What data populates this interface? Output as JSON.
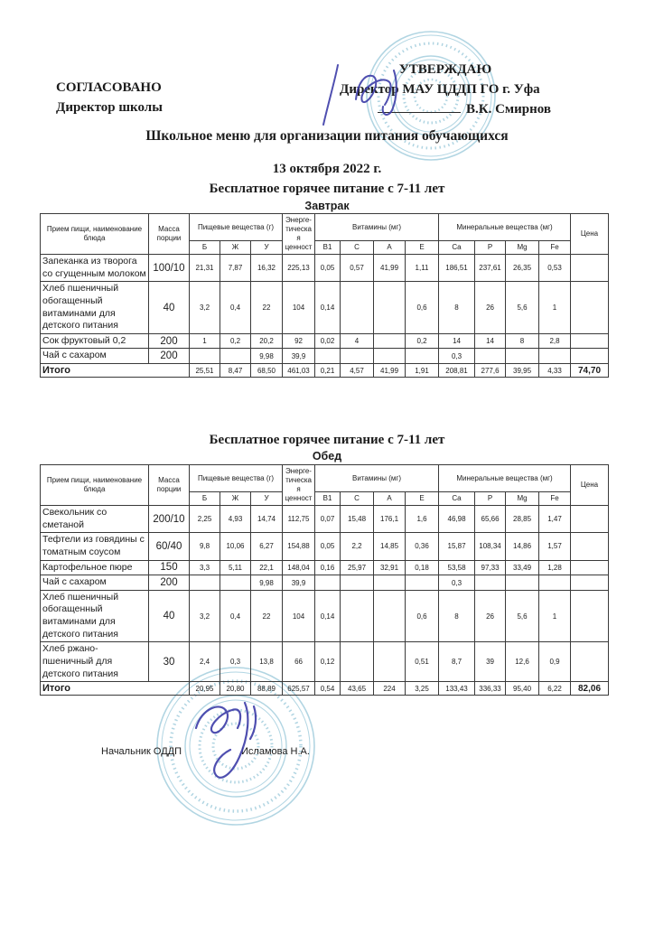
{
  "approval": {
    "left": [
      "СОГЛАСОВАНО",
      "Директор школы"
    ],
    "right": [
      "УТВЕРЖДАЮ",
      "Директор МАУ ЦДДП ГО г. Уфа",
      "В.К. Смирнов"
    ]
  },
  "title": "Школьное меню для организации питания обучающихся",
  "date": "13 октября 2022 г.",
  "table_headers": {
    "dish": "Прием пищи, наименование блюда",
    "mass": "Масса порции",
    "nutrients_group": "Пищевые вещества (г)",
    "nutrients": [
      "Б",
      "Ж",
      "У"
    ],
    "energy": "Энерге-\nтическа\nя\nценност",
    "vitamins_group": "Витамины (мг)",
    "vitamins": [
      "B1",
      "C",
      "A",
      "E"
    ],
    "minerals_group": "Минеральные вещества (мг)",
    "minerals": [
      "Ca",
      "P",
      "Mg",
      "Fe"
    ],
    "price": "Цена"
  },
  "tables": [
    {
      "section_title": "Бесплатное горячее питание с 7-11 лет",
      "meal": "Завтрак",
      "rows": [
        [
          "Запеканка из творога со сгущенным молоком",
          "100/10",
          "21,31",
          "7,87",
          "16,32",
          "225,13",
          "0,05",
          "0,57",
          "41,99",
          "1,11",
          "186,51",
          "237,61",
          "26,35",
          "0,53",
          ""
        ],
        [
          "Хлеб пшеничный обогащенный витаминами для детского питания",
          "40",
          "3,2",
          "0,4",
          "22",
          "104",
          "0,14",
          "",
          "",
          "0,6",
          "8",
          "26",
          "5,6",
          "1",
          ""
        ],
        [
          "Сок фруктовый 0,2",
          "200",
          "1",
          "0,2",
          "20,2",
          "92",
          "0,02",
          "4",
          "",
          "0,2",
          "14",
          "14",
          "8",
          "2,8",
          ""
        ],
        [
          "Чай с сахаром",
          "200",
          "",
          "",
          "9,98",
          "39,9",
          "",
          "",
          "",
          "",
          "0,3",
          "",
          "",
          "",
          ""
        ]
      ],
      "total": [
        "Итого",
        "25,51",
        "8,47",
        "68,50",
        "461,03",
        "0,21",
        "4,57",
        "41,99",
        "1,91",
        "208,81",
        "277,6",
        "39,95",
        "4,33",
        "74,70"
      ]
    },
    {
      "section_title": "Бесплатное горячее питание с 7-11 лет",
      "meal": "Обед",
      "rows": [
        [
          "Свекольник со сметаной",
          "200/10",
          "2,25",
          "4,93",
          "14,74",
          "112,75",
          "0,07",
          "15,48",
          "176,1",
          "1,6",
          "46,98",
          "65,66",
          "28,85",
          "1,47",
          ""
        ],
        [
          "Тефтели из говядины с томатным соусом",
          "60/40",
          "9,8",
          "10,06",
          "6,27",
          "154,88",
          "0,05",
          "2,2",
          "14,85",
          "0,36",
          "15,87",
          "108,34",
          "14,86",
          "1,57",
          ""
        ],
        [
          "Картофельное пюре",
          "150",
          "3,3",
          "5,11",
          "22,1",
          "148,04",
          "0,16",
          "25,97",
          "32,91",
          "0,18",
          "53,58",
          "97,33",
          "33,49",
          "1,28",
          ""
        ],
        [
          "Чай с сахаром",
          "200",
          "",
          "",
          "9,98",
          "39,9",
          "",
          "",
          "",
          "",
          "0,3",
          "",
          "",
          "",
          ""
        ],
        [
          "Хлеб пшеничный обогащенный витаминами для детского питания",
          "40",
          "3,2",
          "0,4",
          "22",
          "104",
          "0,14",
          "",
          "",
          "0,6",
          "8",
          "26",
          "5,6",
          "1",
          ""
        ],
        [
          "Хлеб ржано-пшеничный для детского питания",
          "30",
          "2,4",
          "0,3",
          "13,8",
          "66",
          "0,12",
          "",
          "",
          "0,51",
          "8,7",
          "39",
          "12,6",
          "0,9",
          ""
        ]
      ],
      "total": [
        "Итого",
        "20,95",
        "20,80",
        "88,89",
        "625,57",
        "0,54",
        "43,65",
        "224",
        "3,25",
        "133,43",
        "336,33",
        "95,40",
        "6,22",
        "82,06"
      ]
    }
  ],
  "footer": {
    "role": "Начальник ОДДП",
    "name": "Исламова Н.А."
  },
  "colors": {
    "stamp_blue": "#a4cede",
    "signature_ink": "#3d3da8",
    "border": "#3a3a3a",
    "text": "#1c1c1c"
  }
}
